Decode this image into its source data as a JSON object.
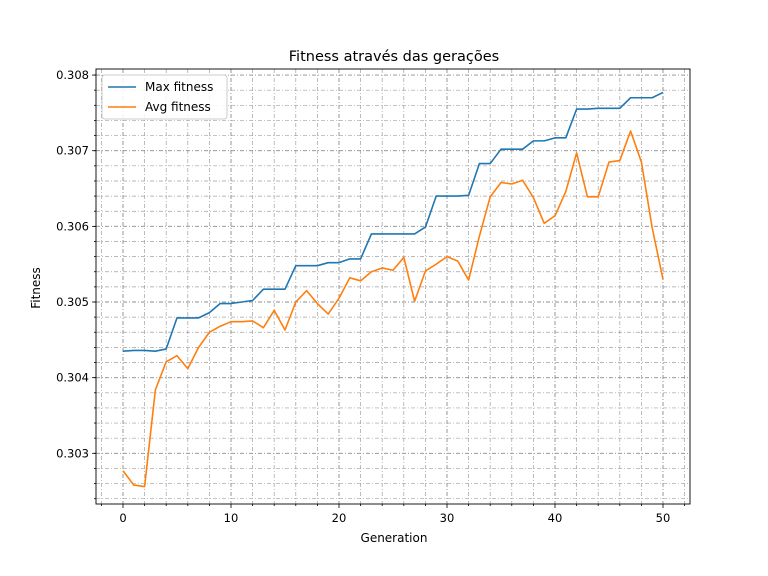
{
  "chart_data": {
    "type": "line",
    "title": "Fitness através das gerações",
    "xlabel": "Generation",
    "ylabel": "Fitness",
    "xlim": [
      -2.5,
      52.5
    ],
    "ylim": [
      0.30233,
      0.30808
    ],
    "x_ticks": [
      0,
      10,
      20,
      30,
      40,
      50
    ],
    "y_ticks": [
      0.303,
      0.304,
      0.305,
      0.306,
      0.307,
      0.308
    ],
    "x_tick_labels": [
      "0",
      "10",
      "20",
      "30",
      "40",
      "50"
    ],
    "y_tick_labels": [
      "0.303",
      "0.304",
      "0.305",
      "0.306",
      "0.307",
      "0.308"
    ],
    "grid": true,
    "minor_grid": true,
    "legend_position": "top-left",
    "x": [
      0,
      1,
      2,
      3,
      4,
      5,
      6,
      7,
      8,
      9,
      10,
      11,
      12,
      13,
      14,
      15,
      16,
      17,
      18,
      19,
      20,
      21,
      22,
      23,
      24,
      25,
      26,
      27,
      28,
      29,
      30,
      31,
      32,
      33,
      34,
      35,
      36,
      37,
      38,
      39,
      40,
      41,
      42,
      43,
      44,
      45,
      46,
      47,
      48,
      49,
      50
    ],
    "series": [
      {
        "name": "Max fitness",
        "color": "#1f77b4",
        "values": [
          0.30435,
          0.30436,
          0.30436,
          0.30435,
          0.30438,
          0.30479,
          0.30479,
          0.30479,
          0.30486,
          0.30498,
          0.30498,
          0.305,
          0.30502,
          0.30517,
          0.30517,
          0.30517,
          0.30548,
          0.30548,
          0.30548,
          0.30552,
          0.30552,
          0.30557,
          0.30557,
          0.3059,
          0.3059,
          0.3059,
          0.3059,
          0.3059,
          0.30599,
          0.3064,
          0.3064,
          0.3064,
          0.30641,
          0.30683,
          0.30683,
          0.30702,
          0.30702,
          0.30702,
          0.30713,
          0.30713,
          0.30717,
          0.30717,
          0.30755,
          0.30755,
          0.30756,
          0.30756,
          0.30756,
          0.3077,
          0.3077,
          0.3077,
          0.30777
        ]
      },
      {
        "name": "Avg fitness",
        "color": "#ff7f0e",
        "values": [
          0.30277,
          0.30258,
          0.30256,
          0.30384,
          0.30421,
          0.30429,
          0.30412,
          0.3044,
          0.3046,
          0.30468,
          0.30474,
          0.30474,
          0.30475,
          0.30466,
          0.30489,
          0.30463,
          0.305,
          0.30515,
          0.30498,
          0.30484,
          0.30505,
          0.30532,
          0.30528,
          0.3054,
          0.30545,
          0.30542,
          0.30559,
          0.30501,
          0.30541,
          0.3055,
          0.3056,
          0.30554,
          0.30529,
          0.30587,
          0.30639,
          0.30658,
          0.30656,
          0.30661,
          0.30638,
          0.30604,
          0.30614,
          0.30646,
          0.30697,
          0.30639,
          0.30639,
          0.30685,
          0.30687,
          0.30726,
          0.30685,
          0.30598,
          0.3053
        ]
      }
    ]
  }
}
